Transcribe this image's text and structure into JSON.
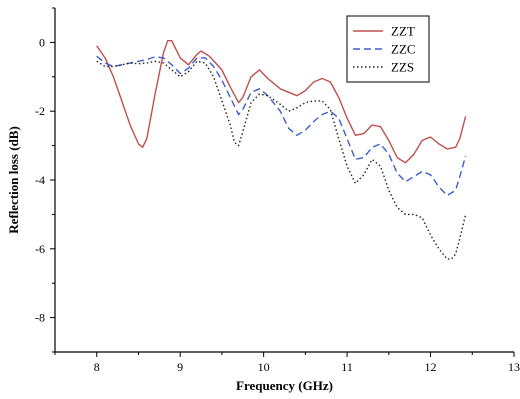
{
  "chart_data": {
    "type": "line",
    "title": "",
    "xlabel": "Frequency (GHz)",
    "ylabel": "Reflection loss (dB)",
    "xlim": [
      7.5,
      13
    ],
    "ylim": [
      -9,
      1
    ],
    "xticks": [
      "8",
      "9",
      "10",
      "11",
      "12",
      "13"
    ],
    "yticks": [
      "0",
      "-2",
      "-4",
      "-6",
      "-8"
    ],
    "grid": false,
    "legend_position": "top-right",
    "series": [
      {
        "name": "ZZT",
        "color": "#c0504d",
        "style": "solid",
        "points": [
          [
            8.0,
            -0.1
          ],
          [
            8.1,
            -0.45
          ],
          [
            8.2,
            -1.0
          ],
          [
            8.3,
            -1.7
          ],
          [
            8.4,
            -2.4
          ],
          [
            8.5,
            -2.95
          ],
          [
            8.55,
            -3.05
          ],
          [
            8.6,
            -2.8
          ],
          [
            8.7,
            -1.5
          ],
          [
            8.8,
            -0.3
          ],
          [
            8.85,
            0.05
          ],
          [
            8.9,
            0.05
          ],
          [
            9.0,
            -0.45
          ],
          [
            9.1,
            -0.65
          ],
          [
            9.2,
            -0.35
          ],
          [
            9.25,
            -0.25
          ],
          [
            9.35,
            -0.4
          ],
          [
            9.5,
            -0.8
          ],
          [
            9.6,
            -1.3
          ],
          [
            9.7,
            -1.75
          ],
          [
            9.75,
            -1.6
          ],
          [
            9.85,
            -1.0
          ],
          [
            9.95,
            -0.8
          ],
          [
            10.05,
            -1.05
          ],
          [
            10.2,
            -1.35
          ],
          [
            10.3,
            -1.45
          ],
          [
            10.4,
            -1.55
          ],
          [
            10.5,
            -1.4
          ],
          [
            10.6,
            -1.15
          ],
          [
            10.7,
            -1.05
          ],
          [
            10.8,
            -1.15
          ],
          [
            10.9,
            -1.6
          ],
          [
            11.0,
            -2.2
          ],
          [
            11.1,
            -2.7
          ],
          [
            11.2,
            -2.65
          ],
          [
            11.3,
            -2.4
          ],
          [
            11.4,
            -2.45
          ],
          [
            11.5,
            -2.85
          ],
          [
            11.6,
            -3.35
          ],
          [
            11.7,
            -3.5
          ],
          [
            11.8,
            -3.25
          ],
          [
            11.9,
            -2.85
          ],
          [
            12.0,
            -2.75
          ],
          [
            12.1,
            -2.95
          ],
          [
            12.2,
            -3.1
          ],
          [
            12.3,
            -3.05
          ],
          [
            12.35,
            -2.8
          ],
          [
            12.42,
            -2.15
          ]
        ]
      },
      {
        "name": "ZZC",
        "color": "#3a5fcd",
        "style": "dashed",
        "points": [
          [
            8.0,
            -0.4
          ],
          [
            8.1,
            -0.6
          ],
          [
            8.2,
            -0.7
          ],
          [
            8.3,
            -0.65
          ],
          [
            8.4,
            -0.6
          ],
          [
            8.5,
            -0.55
          ],
          [
            8.6,
            -0.5
          ],
          [
            8.7,
            -0.42
          ],
          [
            8.8,
            -0.45
          ],
          [
            8.9,
            -0.65
          ],
          [
            9.0,
            -0.9
          ],
          [
            9.1,
            -0.75
          ],
          [
            9.2,
            -0.45
          ],
          [
            9.3,
            -0.45
          ],
          [
            9.4,
            -0.7
          ],
          [
            9.5,
            -1.1
          ],
          [
            9.6,
            -1.6
          ],
          [
            9.7,
            -2.1
          ],
          [
            9.75,
            -1.95
          ],
          [
            9.85,
            -1.45
          ],
          [
            9.95,
            -1.35
          ],
          [
            10.05,
            -1.55
          ],
          [
            10.2,
            -2.0
          ],
          [
            10.3,
            -2.5
          ],
          [
            10.4,
            -2.7
          ],
          [
            10.5,
            -2.55
          ],
          [
            10.6,
            -2.3
          ],
          [
            10.7,
            -2.1
          ],
          [
            10.8,
            -2.0
          ],
          [
            10.9,
            -2.2
          ],
          [
            11.0,
            -2.8
          ],
          [
            11.1,
            -3.4
          ],
          [
            11.2,
            -3.35
          ],
          [
            11.3,
            -3.05
          ],
          [
            11.4,
            -2.95
          ],
          [
            11.5,
            -3.25
          ],
          [
            11.6,
            -3.8
          ],
          [
            11.7,
            -4.05
          ],
          [
            11.8,
            -3.9
          ],
          [
            11.9,
            -3.75
          ],
          [
            12.0,
            -3.85
          ],
          [
            12.1,
            -4.2
          ],
          [
            12.2,
            -4.45
          ],
          [
            12.3,
            -4.3
          ],
          [
            12.35,
            -3.9
          ],
          [
            12.42,
            -3.3
          ]
        ]
      },
      {
        "name": "ZZS",
        "color": "#222222",
        "style": "dotted",
        "points": [
          [
            8.0,
            -0.55
          ],
          [
            8.1,
            -0.7
          ],
          [
            8.2,
            -0.7
          ],
          [
            8.3,
            -0.65
          ],
          [
            8.4,
            -0.6
          ],
          [
            8.5,
            -0.62
          ],
          [
            8.6,
            -0.6
          ],
          [
            8.7,
            -0.55
          ],
          [
            8.8,
            -0.6
          ],
          [
            8.9,
            -0.8
          ],
          [
            9.0,
            -1.0
          ],
          [
            9.1,
            -0.85
          ],
          [
            9.2,
            -0.55
          ],
          [
            9.3,
            -0.6
          ],
          [
            9.4,
            -1.0
          ],
          [
            9.5,
            -1.7
          ],
          [
            9.6,
            -2.4
          ],
          [
            9.65,
            -2.9
          ],
          [
            9.7,
            -3.0
          ],
          [
            9.75,
            -2.6
          ],
          [
            9.85,
            -1.75
          ],
          [
            9.95,
            -1.5
          ],
          [
            10.05,
            -1.55
          ],
          [
            10.2,
            -1.8
          ],
          [
            10.3,
            -2.0
          ],
          [
            10.4,
            -1.9
          ],
          [
            10.5,
            -1.75
          ],
          [
            10.6,
            -1.7
          ],
          [
            10.7,
            -1.7
          ],
          [
            10.8,
            -1.95
          ],
          [
            10.9,
            -2.8
          ],
          [
            11.0,
            -3.6
          ],
          [
            11.1,
            -4.1
          ],
          [
            11.2,
            -3.85
          ],
          [
            11.3,
            -3.4
          ],
          [
            11.4,
            -3.6
          ],
          [
            11.5,
            -4.3
          ],
          [
            11.6,
            -4.8
          ],
          [
            11.7,
            -5.0
          ],
          [
            11.8,
            -5.0
          ],
          [
            11.9,
            -5.1
          ],
          [
            12.0,
            -5.6
          ],
          [
            12.1,
            -6.0
          ],
          [
            12.2,
            -6.3
          ],
          [
            12.25,
            -6.3
          ],
          [
            12.3,
            -6.15
          ],
          [
            12.35,
            -5.7
          ],
          [
            12.42,
            -5.0
          ]
        ]
      }
    ]
  }
}
